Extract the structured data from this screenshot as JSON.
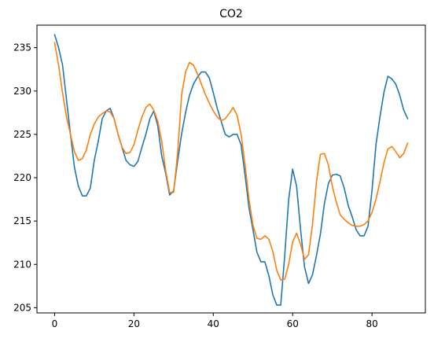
{
  "chart_data": {
    "type": "line",
    "title": "CO2",
    "xlabel": "",
    "ylabel": "",
    "xlim": [
      -4.45,
      93.45
    ],
    "ylim": [
      204.4,
      237.6
    ],
    "xticks": [
      0,
      20,
      40,
      60,
      80
    ],
    "yticks": [
      205,
      210,
      215,
      220,
      225,
      230,
      235
    ],
    "grid": false,
    "legend": "none",
    "x": [
      0,
      1,
      2,
      3,
      4,
      5,
      6,
      7,
      8,
      9,
      10,
      11,
      12,
      13,
      14,
      15,
      16,
      17,
      18,
      19,
      20,
      21,
      22,
      23,
      24,
      25,
      26,
      27,
      28,
      29,
      30,
      31,
      32,
      33,
      34,
      35,
      36,
      37,
      38,
      39,
      40,
      41,
      42,
      43,
      44,
      45,
      46,
      47,
      48,
      49,
      50,
      51,
      52,
      53,
      54,
      55,
      56,
      57,
      58,
      59,
      60,
      61,
      62,
      63,
      64,
      65,
      66,
      67,
      68,
      69,
      70,
      71,
      72,
      73,
      74,
      75,
      76,
      77,
      78,
      79,
      80,
      81,
      82,
      83,
      84,
      85,
      86,
      87,
      88,
      89
    ],
    "series": [
      {
        "color": "#1f77b4",
        "values": [
          236.5,
          235.0,
          233.0,
          229.0,
          225.0,
          221.2,
          219.0,
          217.9,
          217.9,
          218.8,
          222.0,
          224.2,
          226.8,
          227.7,
          228.0,
          226.8,
          225.0,
          223.5,
          222.0,
          221.5,
          221.3,
          221.9,
          223.5,
          225.0,
          226.8,
          227.7,
          226.0,
          222.5,
          220.5,
          218.0,
          218.5,
          221.9,
          225.0,
          227.5,
          229.5,
          230.8,
          231.6,
          232.2,
          232.2,
          231.5,
          229.8,
          228.0,
          226.5,
          225.0,
          224.7,
          225.0,
          225.0,
          223.8,
          220.3,
          216.5,
          214.0,
          211.4,
          210.3,
          210.3,
          208.7,
          206.5,
          205.3,
          205.3,
          211.0,
          217.5,
          221.0,
          219.0,
          214.0,
          209.7,
          207.8,
          208.8,
          211.0,
          213.5,
          217.0,
          219.3,
          220.3,
          220.4,
          220.2,
          218.8,
          216.8,
          215.5,
          214.0,
          213.3,
          213.3,
          214.4,
          218.5,
          223.8,
          227.0,
          229.8,
          231.7,
          231.4,
          230.8,
          229.5,
          227.8,
          226.8
        ]
      },
      {
        "color": "#ff7f0e",
        "values": [
          235.6,
          233.0,
          229.8,
          227.0,
          225.0,
          223.0,
          222.0,
          222.2,
          223.2,
          225.0,
          226.2,
          227.0,
          227.4,
          227.7,
          227.6,
          226.8,
          225.0,
          223.5,
          222.8,
          222.9,
          223.8,
          225.5,
          227.0,
          228.1,
          228.5,
          227.8,
          226.5,
          224.2,
          220.8,
          218.3,
          218.3,
          222.8,
          229.5,
          232.2,
          233.3,
          233.0,
          232.0,
          230.8,
          229.6,
          228.6,
          227.7,
          227.0,
          226.6,
          226.8,
          227.4,
          228.1,
          227.2,
          225.0,
          221.5,
          217.5,
          214.5,
          213.0,
          212.9,
          213.3,
          212.9,
          211.5,
          209.3,
          208.2,
          208.3,
          210.0,
          212.6,
          213.6,
          212.3,
          210.6,
          211.1,
          214.6,
          219.5,
          222.7,
          222.8,
          221.5,
          219.0,
          217.2,
          215.7,
          215.2,
          214.8,
          214.5,
          214.4,
          214.4,
          214.6,
          215.0,
          216.0,
          217.5,
          219.5,
          221.7,
          223.3,
          223.6,
          223.0,
          222.3,
          222.8,
          224.0
        ]
      }
    ]
  }
}
